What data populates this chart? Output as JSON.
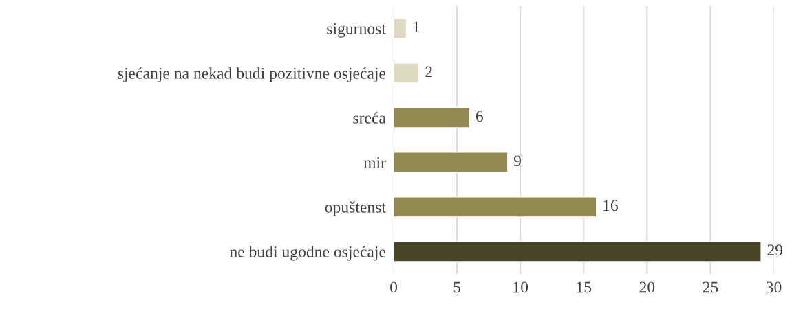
{
  "chart_data": {
    "type": "bar",
    "orientation": "horizontal",
    "categories": [
      "sigurnost",
      "sjećanje na nekad budi pozitivne osjećaje",
      "sreća",
      "mir",
      "opuštenst",
      "ne budi ugodne osjećaje"
    ],
    "values": [
      1,
      2,
      6,
      9,
      16,
      29
    ],
    "colors": [
      "#ddd9c3",
      "#ddd9c3",
      "#938953",
      "#938953",
      "#938953",
      "#4a452a"
    ],
    "xlim": [
      0,
      30
    ],
    "xticks": [
      0,
      5,
      10,
      15,
      20,
      25,
      30
    ],
    "grid": "x",
    "data_labels": true
  }
}
